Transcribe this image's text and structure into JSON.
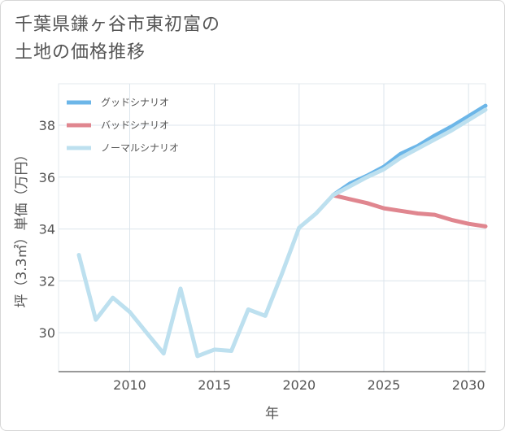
{
  "title_line1": "千葉県鎌ヶ谷市東初富の",
  "title_line2": "土地の価格推移",
  "chart_data": {
    "type": "line",
    "title": "千葉県鎌ヶ谷市東初富の土地の価格推移",
    "xlabel": "年",
    "ylabel": "坪（3.3㎡）単価（万円）",
    "xlim": [
      2005.8,
      2031
    ],
    "ylim": [
      28.5,
      39.6
    ],
    "xticks": [
      2010,
      2015,
      2020,
      2025,
      2030
    ],
    "yticks": [
      30,
      32,
      34,
      36,
      38
    ],
    "grid": true,
    "legend_position": "top-left",
    "series": [
      {
        "name": "グッドシナリオ",
        "color": "#6cb6e8",
        "x": [
          2022,
          2023,
          2024,
          2025,
          2026,
          2027,
          2028,
          2029,
          2030,
          2031
        ],
        "values": [
          35.3,
          35.75,
          36.05,
          36.4,
          36.9,
          37.2,
          37.6,
          37.95,
          38.35,
          38.75
        ]
      },
      {
        "name": "バッドシナリオ",
        "color": "#e0868f",
        "x": [
          2022,
          2023,
          2024,
          2025,
          2026,
          2027,
          2028,
          2029,
          2030,
          2031
        ],
        "values": [
          35.3,
          35.15,
          35.0,
          34.8,
          34.7,
          34.6,
          34.55,
          34.35,
          34.2,
          34.1
        ]
      },
      {
        "name": "ノーマルシナリオ",
        "color": "#bde0ef",
        "x": [
          2007,
          2008,
          2009,
          2010,
          2011,
          2012,
          2013,
          2014,
          2015,
          2016,
          2017,
          2018,
          2019,
          2020,
          2021,
          2022,
          2023,
          2024,
          2025,
          2026,
          2027,
          2028,
          2029,
          2030,
          2031
        ],
        "values": [
          33.0,
          30.5,
          31.35,
          30.8,
          30.0,
          29.2,
          31.7,
          29.1,
          29.35,
          29.3,
          30.9,
          30.65,
          32.3,
          34.05,
          34.6,
          35.3,
          35.65,
          36.0,
          36.3,
          36.75,
          37.1,
          37.45,
          37.8,
          38.2,
          38.6
        ]
      }
    ]
  }
}
